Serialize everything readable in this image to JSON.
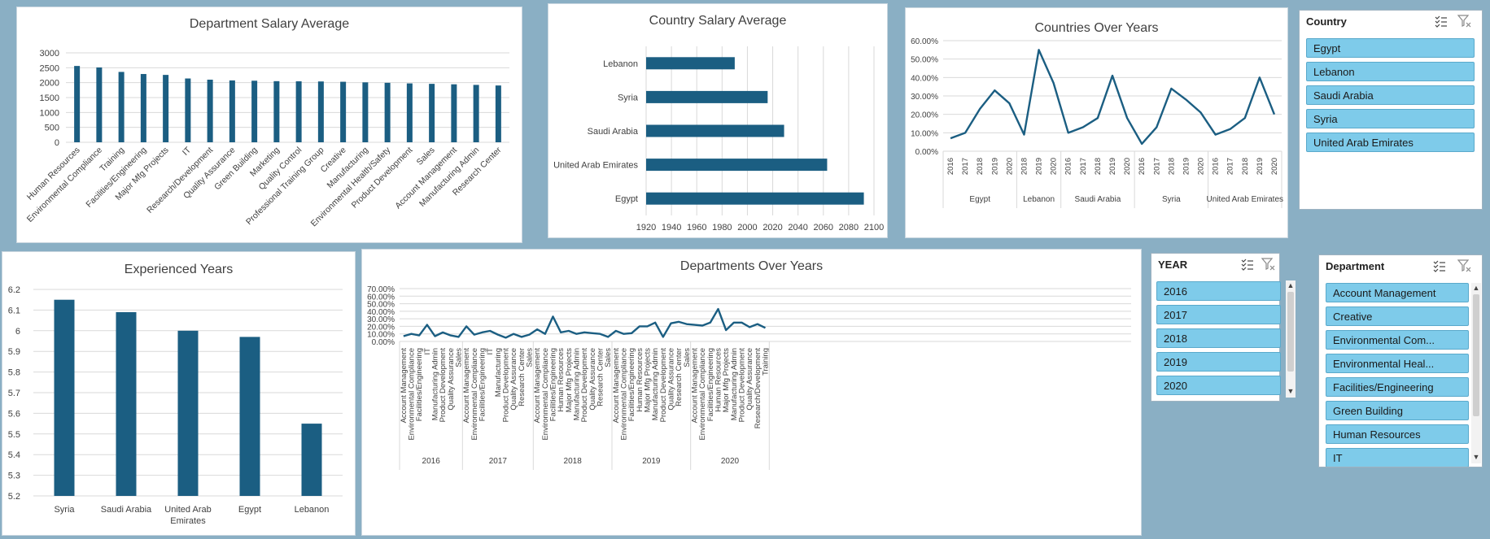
{
  "colors": {
    "bar": "#1b5e82",
    "line": "#1b5e82",
    "grid": "#d9d9d9",
    "axis_text": "#404040",
    "slicer_item": "#7ecbea"
  },
  "charts": {
    "dept_salary": {
      "title": "Department Salary Average"
    },
    "country_salary": {
      "title": "Country Salary Average"
    },
    "countries_years": {
      "title": "Countries Over Years"
    },
    "experienced": {
      "title": "Experienced Years"
    },
    "dept_years": {
      "title": "Departments Over Years"
    }
  },
  "chart_data": [
    {
      "id": "dept_salary",
      "type": "bar",
      "title": "Department Salary Average",
      "categories": [
        "Human Resources",
        "Environmental Compliance",
        "Training",
        "Facilities/Engineering",
        "Major Mfg Projects",
        "IT",
        "Research/Development",
        "Quality Assurance",
        "Green Building",
        "Marketing",
        "Quality Control",
        "Professional Training Group",
        "Creative",
        "Manufacturing",
        "Environmental Health/Safety",
        "Product Development",
        "Sales",
        "Account Management",
        "Manufacturing Admin",
        "Research Center"
      ],
      "values": [
        2560,
        2510,
        2360,
        2290,
        2260,
        2140,
        2100,
        2075,
        2065,
        2050,
        2045,
        2040,
        2030,
        2010,
        1995,
        1975,
        1960,
        1945,
        1925,
        1905
      ],
      "ylim": [
        0,
        3000
      ],
      "yticks": [
        "0",
        "500",
        "1000",
        "1500",
        "2000",
        "2500",
        "3000"
      ],
      "grid": true
    },
    {
      "id": "country_salary",
      "type": "bar",
      "orientation": "horizontal",
      "title": "Country Salary Average",
      "categories": [
        "Lebanon",
        "Syria",
        "Saudi Arabia",
        "United Arab Emirates",
        "Egypt"
      ],
      "values": [
        1990,
        2016,
        2029,
        2063,
        2092
      ],
      "xlim": [
        1920,
        2100
      ],
      "xticks": [
        "1920",
        "1940",
        "1960",
        "1980",
        "2000",
        "2020",
        "2040",
        "2060",
        "2080",
        "2100"
      ],
      "grid": true
    },
    {
      "id": "countries_years",
      "type": "line",
      "title": "Countries Over Years",
      "groups": [
        {
          "name": "Egypt",
          "years": [
            "2016",
            "2017",
            "2018",
            "2019",
            "2020"
          ]
        },
        {
          "name": "Lebanon",
          "years": [
            "2018",
            "2019",
            "2020"
          ]
        },
        {
          "name": "Saudi Arabia",
          "years": [
            "2016",
            "2017",
            "2018",
            "2019",
            "2020"
          ]
        },
        {
          "name": "Syria",
          "years": [
            "2016",
            "2017",
            "2018",
            "2019",
            "2020"
          ]
        },
        {
          "name": "United Arab Emirates",
          "years": [
            "2016",
            "2017",
            "2018",
            "2019",
            "2020"
          ]
        }
      ],
      "values": [
        0.07,
        0.1,
        0.23,
        0.33,
        0.26,
        0.09,
        0.55,
        0.37,
        0.1,
        0.13,
        0.18,
        0.41,
        0.18,
        0.04,
        0.13,
        0.34,
        0.28,
        0.21,
        0.09,
        0.12,
        0.18,
        0.4,
        0.2
      ],
      "ylim": [
        0,
        0.6
      ],
      "yticks": [
        "0.00%",
        "10.00%",
        "20.00%",
        "30.00%",
        "40.00%",
        "50.00%",
        "60.00%"
      ],
      "grid": true
    },
    {
      "id": "experienced",
      "type": "bar",
      "title": "Experienced Years",
      "categories": [
        "Syria",
        "Saudi Arabia",
        "United Arab Emirates",
        "Egypt",
        "Lebanon"
      ],
      "values": [
        6.15,
        6.09,
        6.0,
        5.97,
        5.55
      ],
      "ylim": [
        5.2,
        6.2
      ],
      "yticks": [
        "5.2",
        "5.3",
        "5.4",
        "5.5",
        "5.6",
        "5.7",
        "5.8",
        "5.9",
        "6",
        "6.1",
        "6.2"
      ],
      "grid": true
    },
    {
      "id": "dept_years",
      "type": "line",
      "title": "Departments Over Years",
      "groups": [
        {
          "name": "2016",
          "categories": [
            "Account Management",
            "Environmental Compliance",
            "Facilities/Engineering",
            "IT",
            "Manufacturing Admin",
            "Product Development",
            "Quality Assurance",
            "Sales"
          ]
        },
        {
          "name": "2017",
          "categories": [
            "Account Management",
            "Environmental Compliance",
            "Facilities/Engineering",
            "IT",
            "Manufacturing",
            "Product Development",
            "Quality Assurance",
            "Research Center",
            "Sales"
          ]
        },
        {
          "name": "2018",
          "categories": [
            "Account Management",
            "Environmental Compliance",
            "Facilities/Engineering",
            "Human Resources",
            "Major Mfg Projects",
            "Manufacturing Admin",
            "Product Development",
            "Quality Assurance",
            "Research Center",
            "Sales"
          ]
        },
        {
          "name": "2019",
          "categories": [
            "Account Management",
            "Environmental Compliance",
            "Facilities/Engineering",
            "Human Resources",
            "Major Mfg Projects",
            "Manufacturing Admin",
            "Product Development",
            "Quality Assurance",
            "Research Center",
            "Sales"
          ]
        },
        {
          "name": "2020",
          "categories": [
            "Account Management",
            "Environmental Compliance",
            "Facilities/Engineering",
            "Human Resources",
            "Major Mfg Projects",
            "Manufacturing Admin",
            "Product Development",
            "Quality Assurance",
            "Research/Development",
            "Training"
          ]
        }
      ],
      "values": [
        0.07,
        0.1,
        0.08,
        0.22,
        0.07,
        0.12,
        0.08,
        0.06,
        0.2,
        0.09,
        0.12,
        0.14,
        0.09,
        0.05,
        0.1,
        0.06,
        0.09,
        0.16,
        0.1,
        0.33,
        0.12,
        0.14,
        0.1,
        0.12,
        0.11,
        0.1,
        0.06,
        0.14,
        0.1,
        0.11,
        0.2,
        0.2,
        0.25,
        0.06,
        0.24,
        0.26,
        0.23,
        0.22,
        0.21,
        0.25,
        0.43,
        0.15,
        0.25,
        0.25,
        0.19,
        0.23,
        0.18,
        0.14,
        0.18,
        0.25,
        0.2,
        0.2,
        0.11,
        0.13,
        0.37,
        0.37,
        0.22,
        0.11,
        0.36,
        0.37,
        0.29,
        0.37,
        0.25,
        0.35,
        0.4,
        0.37,
        0.47,
        0.42,
        0.3,
        0.34,
        0.6,
        0.2,
        0.45,
        0.56,
        0.24,
        0.11,
        0.38,
        0.11,
        0.24,
        0.25,
        0.14,
        0.3,
        0.37,
        0.23,
        0.2,
        0.21,
        0.18,
        0.14,
        0.33,
        0.24,
        0.4,
        0.1,
        0.19
      ],
      "ylim": [
        0,
        0.7
      ],
      "yticks": [
        "0.00%",
        "10.00%",
        "20.00%",
        "30.00%",
        "40.00%",
        "50.00%",
        "60.00%",
        "70.00%"
      ],
      "grid": true
    }
  ],
  "slicers": {
    "country": {
      "title": "Country",
      "items": [
        "Egypt",
        "Lebanon",
        "Saudi Arabia",
        "Syria",
        "United Arab Emirates"
      ]
    },
    "year": {
      "title": "YEAR",
      "items": [
        "2016",
        "2017",
        "2018",
        "2019",
        "2020"
      ]
    },
    "department": {
      "title": "Department",
      "items": [
        "Account Management",
        "Creative",
        "Environmental Com...",
        "Environmental Heal...",
        "Facilities/Engineering",
        "Green Building",
        "Human Resources",
        "IT"
      ]
    }
  },
  "icons": {
    "multiselect": "multiselect-icon",
    "clear_filter": "clear-filter-icon",
    "scroll_up": "scroll-up-icon",
    "scroll_down": "scroll-down-icon"
  }
}
